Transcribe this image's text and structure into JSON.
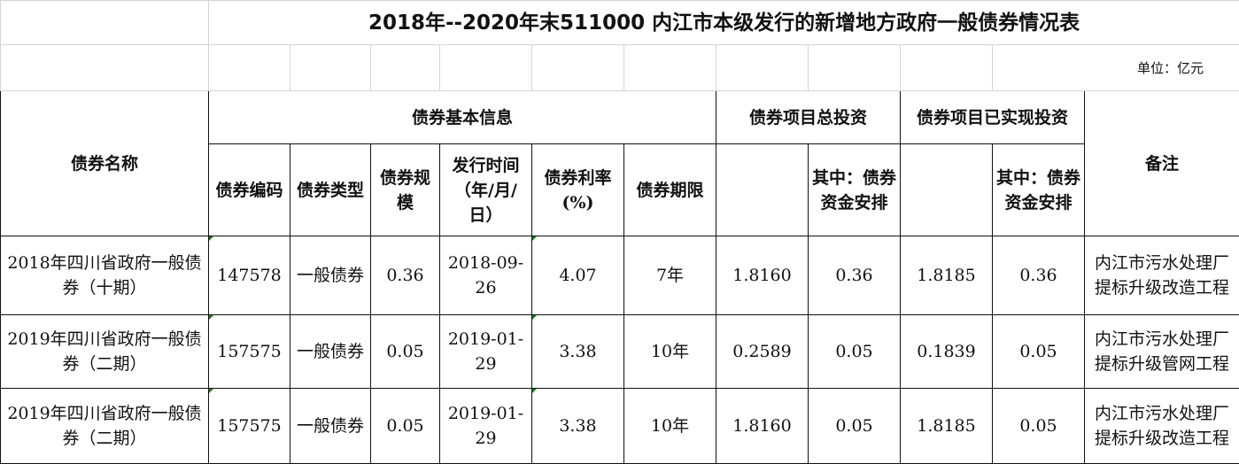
{
  "title": "2018年--2020年末511000 内江市本级发行的新增地方政府一般债券情况表",
  "unit": "单位：亿元",
  "headers": {
    "bond_name": "债券名称",
    "basic_info": "债券基本信息",
    "total_investment": "债券项目总投资",
    "realized_investment": "债券项目已实现投资",
    "remarks": "备注",
    "code": "债券编码",
    "type": "债券类型",
    "scale": "债券规模",
    "issue_date": "发行时间（年/月/日）",
    "rate": "债券利率(%)",
    "term": "债券期限",
    "total_bond_funds": "其中：债券资金安排",
    "realized_bond_funds": "其中：债券资金安排"
  },
  "rows": [
    {
      "name": "2018年四川省政府一般债券（十期）",
      "code": "147578",
      "type": "一般债券",
      "scale": "0.36",
      "date": "2018-09-26",
      "rate": "4.07",
      "term": "7年",
      "total": "1.8160",
      "total_funds": "0.36",
      "realized": "1.8185",
      "realized_funds": "0.36",
      "remarks": "内江市污水处理厂提标升级改造工程"
    },
    {
      "name": "2019年四川省政府一般债券（二期）",
      "code": "157575",
      "type": "一般债券",
      "scale": "0.05",
      "date": "2019-01-29",
      "rate": "3.38",
      "term": "10年",
      "total": "0.2589",
      "total_funds": "0.05",
      "realized": "0.1839",
      "realized_funds": "0.05",
      "remarks": "内江市污水处理厂提标升级管网工程"
    },
    {
      "name": "2019年四川省政府一般债券（二期）",
      "code": "157575",
      "type": "一般债券",
      "scale": "0.05",
      "date": "2019-01-29",
      "rate": "3.38",
      "term": "10年",
      "total": "1.8160",
      "total_funds": "0.05",
      "realized": "1.8185",
      "realized_funds": "0.05",
      "remarks": "内江市污水处理厂提标升级改造工程"
    }
  ]
}
